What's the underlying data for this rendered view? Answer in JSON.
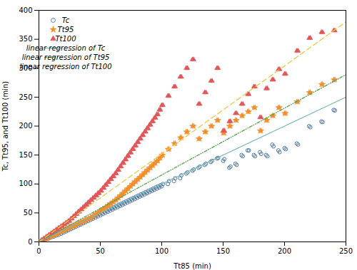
{
  "chart_data": {
    "type": "scatter",
    "xlabel": "Tt85 (min)",
    "ylabel": "Tc, Tt95, and Tt100 (min)",
    "xlim": [
      0,
      250
    ],
    "ylim": [
      0,
      400
    ],
    "xticks": [
      0,
      50,
      100,
      150,
      200,
      250
    ],
    "yticks": [
      0,
      50,
      100,
      150,
      200,
      250,
      300,
      350,
      400
    ],
    "grid": false,
    "legend": "upper left",
    "series": [
      {
        "name": "Tc",
        "type": "scatter",
        "marker": "circle_open",
        "x": [
          2,
          4,
          6,
          8,
          10,
          12,
          14,
          16,
          18,
          20,
          22,
          24,
          26,
          28,
          30,
          32,
          34,
          36,
          38,
          40,
          42,
          44,
          46,
          48,
          50,
          52,
          54,
          56,
          58,
          60,
          62,
          64,
          66,
          68,
          70,
          72,
          74,
          76,
          78,
          80,
          82,
          84,
          86,
          88,
          90,
          92,
          94,
          96,
          98,
          100,
          105,
          110,
          115,
          120,
          125,
          130,
          135,
          140,
          145,
          150,
          155,
          160,
          165,
          170,
          175,
          180,
          185,
          190,
          195,
          200,
          210,
          220,
          230,
          240,
          3,
          5,
          7,
          9,
          11,
          13,
          15,
          17,
          19,
          21,
          23,
          25,
          27,
          29,
          31,
          33,
          35,
          37,
          39,
          41,
          43,
          45,
          47,
          49,
          51,
          53,
          55,
          57,
          59,
          61,
          63,
          65,
          67,
          69,
          71,
          73,
          75,
          77,
          79,
          81,
          83,
          85,
          87,
          89,
          91,
          93,
          95,
          97,
          99,
          101,
          106,
          111,
          116,
          121,
          126,
          131,
          136,
          141,
          146,
          151,
          156,
          161,
          166,
          171,
          176,
          181,
          186,
          191,
          196,
          201,
          211,
          221,
          231,
          241
        ],
        "values": [
          2,
          3,
          5,
          6,
          8,
          9,
          11,
          12,
          14,
          16,
          18,
          20,
          22,
          24,
          26,
          28,
          30,
          32,
          34,
          36,
          38,
          40,
          42,
          44,
          46,
          48,
          50,
          52,
          54,
          56,
          58,
          60,
          62,
          64,
          66,
          68,
          70,
          72,
          74,
          76,
          78,
          80,
          82,
          84,
          86,
          88,
          90,
          92,
          94,
          96,
          100,
          105,
          110,
          118,
          123,
          128,
          133,
          138,
          144,
          140,
          128,
          135,
          150,
          158,
          150,
          155,
          150,
          168,
          158,
          162,
          170,
          200,
          208,
          228,
          2,
          4,
          6,
          8,
          10,
          12,
          14,
          16,
          18,
          20,
          22,
          24,
          26,
          28,
          30,
          32,
          34,
          36,
          38,
          40,
          42,
          44,
          46,
          48,
          50,
          52,
          54,
          56,
          58,
          60,
          62,
          64,
          66,
          68,
          70,
          72,
          74,
          76,
          78,
          80,
          82,
          84,
          86,
          88,
          90,
          92,
          94,
          96,
          98,
          100,
          105,
          110,
          115,
          120,
          125,
          130,
          135,
          140,
          145,
          143,
          130,
          133,
          148,
          158,
          148,
          152,
          148,
          165,
          155,
          160,
          168,
          198,
          207,
          227
        ]
      },
      {
        "name": "Tt95",
        "type": "scatter",
        "marker": "star",
        "x": [
          2,
          4,
          6,
          8,
          10,
          12,
          14,
          16,
          18,
          20,
          22,
          24,
          26,
          28,
          30,
          32,
          34,
          36,
          38,
          40,
          42,
          44,
          46,
          48,
          50,
          52,
          54,
          56,
          58,
          60,
          62,
          64,
          66,
          68,
          70,
          72,
          74,
          76,
          78,
          80,
          82,
          84,
          86,
          88,
          90,
          92,
          94,
          96,
          98,
          100,
          105,
          110,
          115,
          120,
          125,
          130,
          135,
          140,
          145,
          150,
          155,
          160,
          165,
          170,
          175,
          180,
          185,
          190,
          195,
          200,
          210,
          220,
          230,
          240,
          3,
          5,
          7,
          9,
          11,
          13,
          15,
          17,
          19,
          21,
          23,
          25,
          27,
          29,
          31,
          33,
          35,
          37,
          39,
          41,
          43,
          45,
          47,
          49,
          51,
          53,
          55,
          57,
          59,
          61,
          63,
          65,
          67,
          69,
          71,
          73,
          75,
          77,
          79,
          81,
          83,
          85,
          87,
          89,
          91,
          93,
          95,
          97,
          99,
          101,
          106,
          111,
          116,
          121,
          126,
          131,
          136,
          141,
          146,
          151,
          156,
          161,
          166,
          171,
          176,
          181,
          186,
          191,
          196,
          201,
          211,
          221,
          231,
          241
        ],
        "values": [
          2,
          4,
          6,
          8,
          10,
          12,
          14,
          16,
          18,
          20,
          22,
          24,
          26,
          28,
          30,
          32,
          34,
          36,
          38,
          40,
          42,
          45,
          48,
          51,
          54,
          57,
          60,
          63,
          66,
          69,
          72,
          76,
          80,
          84,
          88,
          92,
          96,
          100,
          104,
          108,
          112,
          116,
          120,
          124,
          128,
          132,
          136,
          140,
          145,
          150,
          160,
          170,
          180,
          190,
          200,
          178,
          190,
          200,
          210,
          188,
          200,
          210,
          218,
          225,
          232,
          192,
          210,
          218,
          232,
          222,
          242,
          258,
          272,
          280,
          2,
          4,
          6,
          8,
          10,
          12,
          14,
          16,
          18,
          20,
          22,
          24,
          26,
          28,
          30,
          32,
          34,
          36,
          38,
          40,
          42,
          45,
          48,
          51,
          54,
          57,
          60,
          63,
          66,
          69,
          72,
          76,
          80,
          84,
          88,
          92,
          96,
          100,
          104,
          108,
          112,
          116,
          120,
          124,
          128,
          132,
          136,
          140,
          145,
          150,
          160,
          170,
          180,
          190,
          200,
          178,
          190,
          200,
          210,
          188,
          200,
          210,
          218,
          225,
          232,
          192,
          210,
          218,
          232,
          222,
          242,
          258,
          272,
          280
        ]
      },
      {
        "name": "Tt100",
        "type": "scatter",
        "marker": "triangle",
        "x": [
          2,
          4,
          6,
          8,
          10,
          12,
          14,
          16,
          18,
          20,
          22,
          24,
          26,
          28,
          30,
          32,
          34,
          36,
          38,
          40,
          42,
          44,
          46,
          48,
          50,
          52,
          54,
          56,
          58,
          60,
          62,
          64,
          66,
          68,
          70,
          72,
          74,
          76,
          78,
          80,
          82,
          84,
          86,
          88,
          90,
          92,
          94,
          96,
          98,
          100,
          105,
          110,
          115,
          120,
          125,
          130,
          135,
          140,
          145,
          150,
          155,
          160,
          165,
          170,
          175,
          180,
          185,
          190,
          195,
          200,
          210,
          220,
          230,
          240,
          3,
          5,
          7,
          9,
          11,
          13,
          15,
          17,
          19,
          21,
          23,
          25,
          27,
          29,
          31,
          33,
          35,
          37,
          39,
          41,
          43,
          45,
          47,
          49,
          51,
          53,
          55,
          57,
          59,
          61,
          63,
          65,
          67,
          69,
          71,
          73,
          75,
          77,
          79,
          81,
          83,
          85,
          87,
          89,
          91,
          93,
          95,
          97,
          99,
          101,
          106,
          111,
          116,
          121,
          126,
          131,
          136,
          141,
          146,
          151,
          156,
          161,
          166,
          171,
          176,
          181,
          186,
          191,
          196,
          201,
          211,
          221,
          231,
          241
        ],
        "values": [
          3,
          6,
          9,
          12,
          15,
          18,
          21,
          24,
          27,
          30,
          33,
          36,
          40,
          44,
          48,
          52,
          56,
          60,
          64,
          68,
          72,
          76,
          80,
          84,
          88,
          93,
          98,
          103,
          108,
          113,
          118,
          124,
          130,
          136,
          142,
          148,
          154,
          160,
          166,
          172,
          178,
          184,
          190,
          196,
          202,
          208,
          214,
          220,
          228,
          236,
          252,
          268,
          285,
          300,
          315,
          238,
          258,
          278,
          300,
          192,
          208,
          222,
          238,
          255,
          268,
          215,
          265,
          280,
          298,
          290,
          330,
          352,
          362,
          365,
          3,
          6,
          9,
          12,
          15,
          18,
          21,
          24,
          27,
          30,
          33,
          36,
          40,
          44,
          48,
          52,
          56,
          60,
          64,
          68,
          72,
          76,
          80,
          84,
          88,
          93,
          98,
          103,
          108,
          113,
          118,
          124,
          130,
          136,
          142,
          148,
          154,
          160,
          166,
          172,
          178,
          184,
          190,
          196,
          202,
          208,
          214,
          220,
          228,
          236,
          252,
          268,
          285,
          300,
          315,
          238,
          258,
          278,
          300,
          192,
          208,
          222,
          238,
          255,
          268,
          215,
          265,
          280,
          298,
          290,
          330,
          352,
          362,
          365
        ]
      },
      {
        "name": "linear regression of Tc",
        "type": "line",
        "line_style": "solid",
        "x": [
          0,
          250
        ],
        "values": [
          0,
          250
        ]
      },
      {
        "name": "linear regression of Tt95",
        "type": "line",
        "line_style": "dashdotdot",
        "x": [
          0,
          250
        ],
        "values": [
          0,
          288.75
        ]
      },
      {
        "name": "linear regression of Tt100",
        "type": "line",
        "line_style": "dashed",
        "x": [
          0,
          250
        ],
        "values": [
          0,
          380
        ]
      }
    ]
  }
}
